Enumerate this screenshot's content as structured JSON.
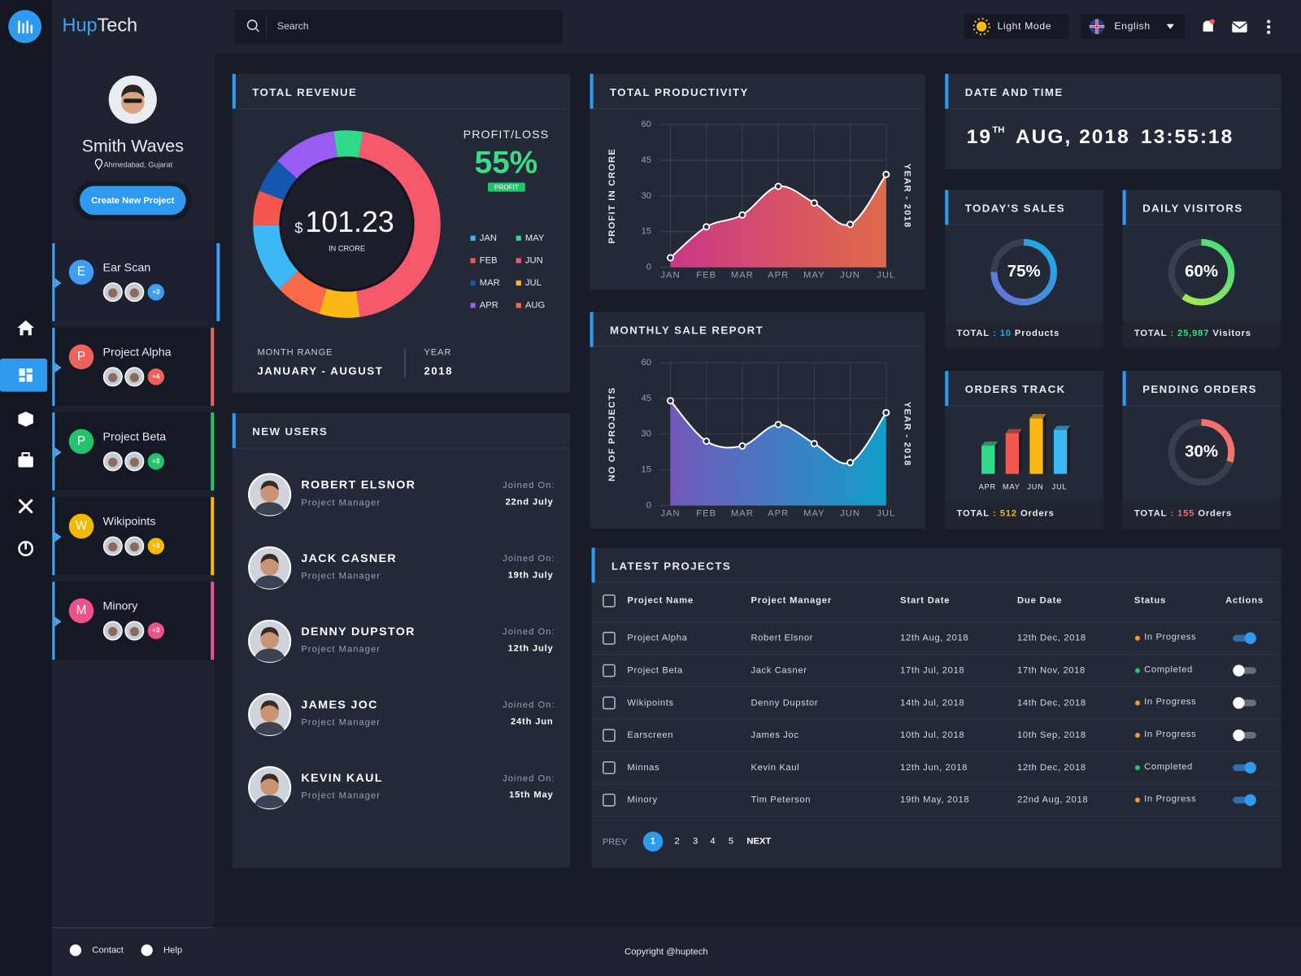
{
  "brand": {
    "first": "Hup",
    "second": "Tech"
  },
  "search": "Search",
  "light_mode": "Light Mode",
  "language": "English",
  "profile": {
    "name": "Smith Waves",
    "location": "Ahmedabad, Gujarat",
    "button": "Create New Project"
  },
  "sidebar_projects": [
    {
      "initial": "E",
      "name": "Ear Scan",
      "more": "+3",
      "color": "#3d9df2",
      "active": true
    },
    {
      "initial": "P",
      "name": "Project Alpha",
      "more": "+4",
      "color": "#f0605a",
      "active": false
    },
    {
      "initial": "P",
      "name": "Project Beta",
      "more": "+3",
      "color": "#22c36b",
      "active": false
    },
    {
      "initial": "W",
      "name": "Wikipoints",
      "more": "+3",
      "color": "#f5b800",
      "active": false
    },
    {
      "initial": "M",
      "name": "Minory",
      "more": "+3",
      "color": "#f0508a",
      "active": false
    }
  ],
  "revenue": {
    "title": "TOTAL REVENUE",
    "currency": "$",
    "amount": "101.23",
    "unit": "IN CRORE",
    "profit_label": "PROFIT/LOSS",
    "profit": 55,
    "profit_label_value": "55%",
    "profit_tag": "PROFIT",
    "month_range_label": "MONTH RANGE",
    "month_range": "JANUARY - AUGUST",
    "year_label": "YEAR",
    "year": "2018",
    "chart": {
      "type": "pie",
      "categories": [
        "JAN",
        "FEB",
        "MAR",
        "APR",
        "MAY",
        "JUN",
        "JUL",
        "AUG"
      ],
      "colors": [
        "#3bb8f5",
        "#f5564f",
        "#1357b0",
        "#9b5cf5",
        "#31d98a",
        "#f7596c",
        "#fcb814",
        "#fa6a4a"
      ],
      "values": [
        12,
        6,
        6,
        11,
        5,
        45,
        7,
        8
      ]
    }
  },
  "productivity": {
    "type": "area",
    "title": "TOTAL PRODUCTIVITY",
    "y_label": "PROFIT IN CRORE",
    "right_label": "YEAR - 2018",
    "categories": [
      "JAN",
      "FEB",
      "MAR",
      "APR",
      "MAY",
      "JUN",
      "JUL"
    ],
    "values": [
      4,
      17,
      22,
      34,
      27,
      18,
      39
    ],
    "ylim": [
      0,
      60
    ],
    "yticks": [
      0,
      15,
      30,
      45,
      60
    ],
    "grid": true,
    "colors": [
      "#d9388f",
      "#f0704a"
    ]
  },
  "monthly_sales": {
    "type": "area",
    "title": "MONTHLY SALE REPORT",
    "y_label": "NO OF PROJECTS",
    "right_label": "YEAR - 2018",
    "categories": [
      "JAN",
      "FEB",
      "MAR",
      "APR",
      "MAY",
      "JUN",
      "JUL"
    ],
    "values": [
      44,
      27,
      25,
      34,
      26,
      18,
      39
    ],
    "ylim": [
      0,
      60
    ],
    "yticks": [
      0,
      15,
      30,
      45,
      60
    ],
    "grid": true,
    "colors": [
      "#7b5cc8",
      "#0fa8d6"
    ]
  },
  "date_time": {
    "title": "DATE AND TIME",
    "day": "19",
    "suffix": "TH",
    "month_year": "AUG, 2018",
    "time": "13:55:18"
  },
  "todays_sales": {
    "title": "TODAY'S SALES",
    "value": 75,
    "value_label": "75%",
    "total_label": "TOTAL",
    "separator": ":",
    "count": 10,
    "unit": "Products",
    "colors": [
      "#15b0e8",
      "#6a6fd6"
    ]
  },
  "daily_visitors": {
    "title": "DAILY VISITORS",
    "value": 60,
    "value_label": "60%",
    "total_label": "TOTAL",
    "separator": ":",
    "count": 25987,
    "count_label": "25,987",
    "unit": "Visitors",
    "colors": [
      "#3ddc84",
      "#b8e94a"
    ]
  },
  "pending_orders": {
    "title": "PENDING ORDERS",
    "value": 30,
    "value_label": "30%",
    "total_label": "TOTAL",
    "separator": ":",
    "count": 155,
    "unit": "Orders",
    "colors": [
      "#f5656b",
      "#f7a56b"
    ]
  },
  "orders_track": {
    "title": "ORDERS TRACK",
    "total_label": "TOTAL",
    "separator": ":",
    "count": 512,
    "unit": "Orders",
    "accent": "#f5b800",
    "chart": {
      "type": "bar",
      "categories": [
        "APR",
        "MAY",
        "JUN",
        "JUL"
      ],
      "values": [
        34,
        49,
        67,
        53
      ],
      "colors": [
        "#31d98a",
        "#f5564f",
        "#fcb814",
        "#3bb8f5"
      ]
    }
  },
  "new_users": {
    "title": "NEW USERS",
    "joined_label": "Joined On:",
    "users": [
      {
        "name": "ROBERT ELSNOR",
        "role": "Project Manager",
        "date": "22nd July"
      },
      {
        "name": "JACK CASNER",
        "role": "Project Manager",
        "date": "19th July"
      },
      {
        "name": "DENNY DUPSTOR",
        "role": "Project Manager",
        "date": "12th July"
      },
      {
        "name": "JAMES JOC",
        "role": "Project Manager",
        "date": "24th Jun"
      },
      {
        "name": "KEVIN KAUL",
        "role": "Project Manager",
        "date": "15th May"
      }
    ]
  },
  "latest_projects": {
    "title": "LATEST PROJECTS",
    "headers": [
      "Project Name",
      "Project Manager",
      "Start Date",
      "Due Date",
      "Status",
      "Actions"
    ],
    "rows": [
      {
        "name": "Project Alpha",
        "manager": "Robert Elsnor",
        "start": "12th Aug, 2018",
        "due": "12th Dec, 2018",
        "status": "In Progress",
        "status_color": "#f5922b",
        "active": true
      },
      {
        "name": "Project Beta",
        "manager": "Jack Casner",
        "start": "17th Jul, 2018",
        "due": "17th Nov, 2018",
        "status": "Completed",
        "status_color": "#22c36b",
        "active": false
      },
      {
        "name": "Wikipoints",
        "manager": "Denny Dupstor",
        "start": "14th Jul, 2018",
        "due": "14th Dec, 2018",
        "status": "In Progress",
        "status_color": "#f5922b",
        "active": false
      },
      {
        "name": "Earscreen",
        "manager": "James Joc",
        "start": "10th Jul, 2018",
        "due": "10th Sep, 2018",
        "status": "In Progress",
        "status_color": "#f5922b",
        "active": false
      },
      {
        "name": "Minnas",
        "manager": "Kevin Kaul",
        "start": "12th Jun, 2018",
        "due": "12th Dec, 2018",
        "status": "Completed",
        "status_color": "#22c36b",
        "active": true
      },
      {
        "name": "Minory",
        "manager": "Tim Peterson",
        "start": "19th May, 2018",
        "due": "22nd Aug, 2018",
        "status": "In Progress",
        "status_color": "#f5922b",
        "active": true
      }
    ],
    "pagination": {
      "prev": "PREV",
      "pages": [
        1,
        2,
        3,
        4,
        5
      ],
      "current": 1,
      "next": "NEXT"
    }
  },
  "footer": {
    "contact": "Contact",
    "help": "Help",
    "copyright": "Copyright @huptech"
  }
}
